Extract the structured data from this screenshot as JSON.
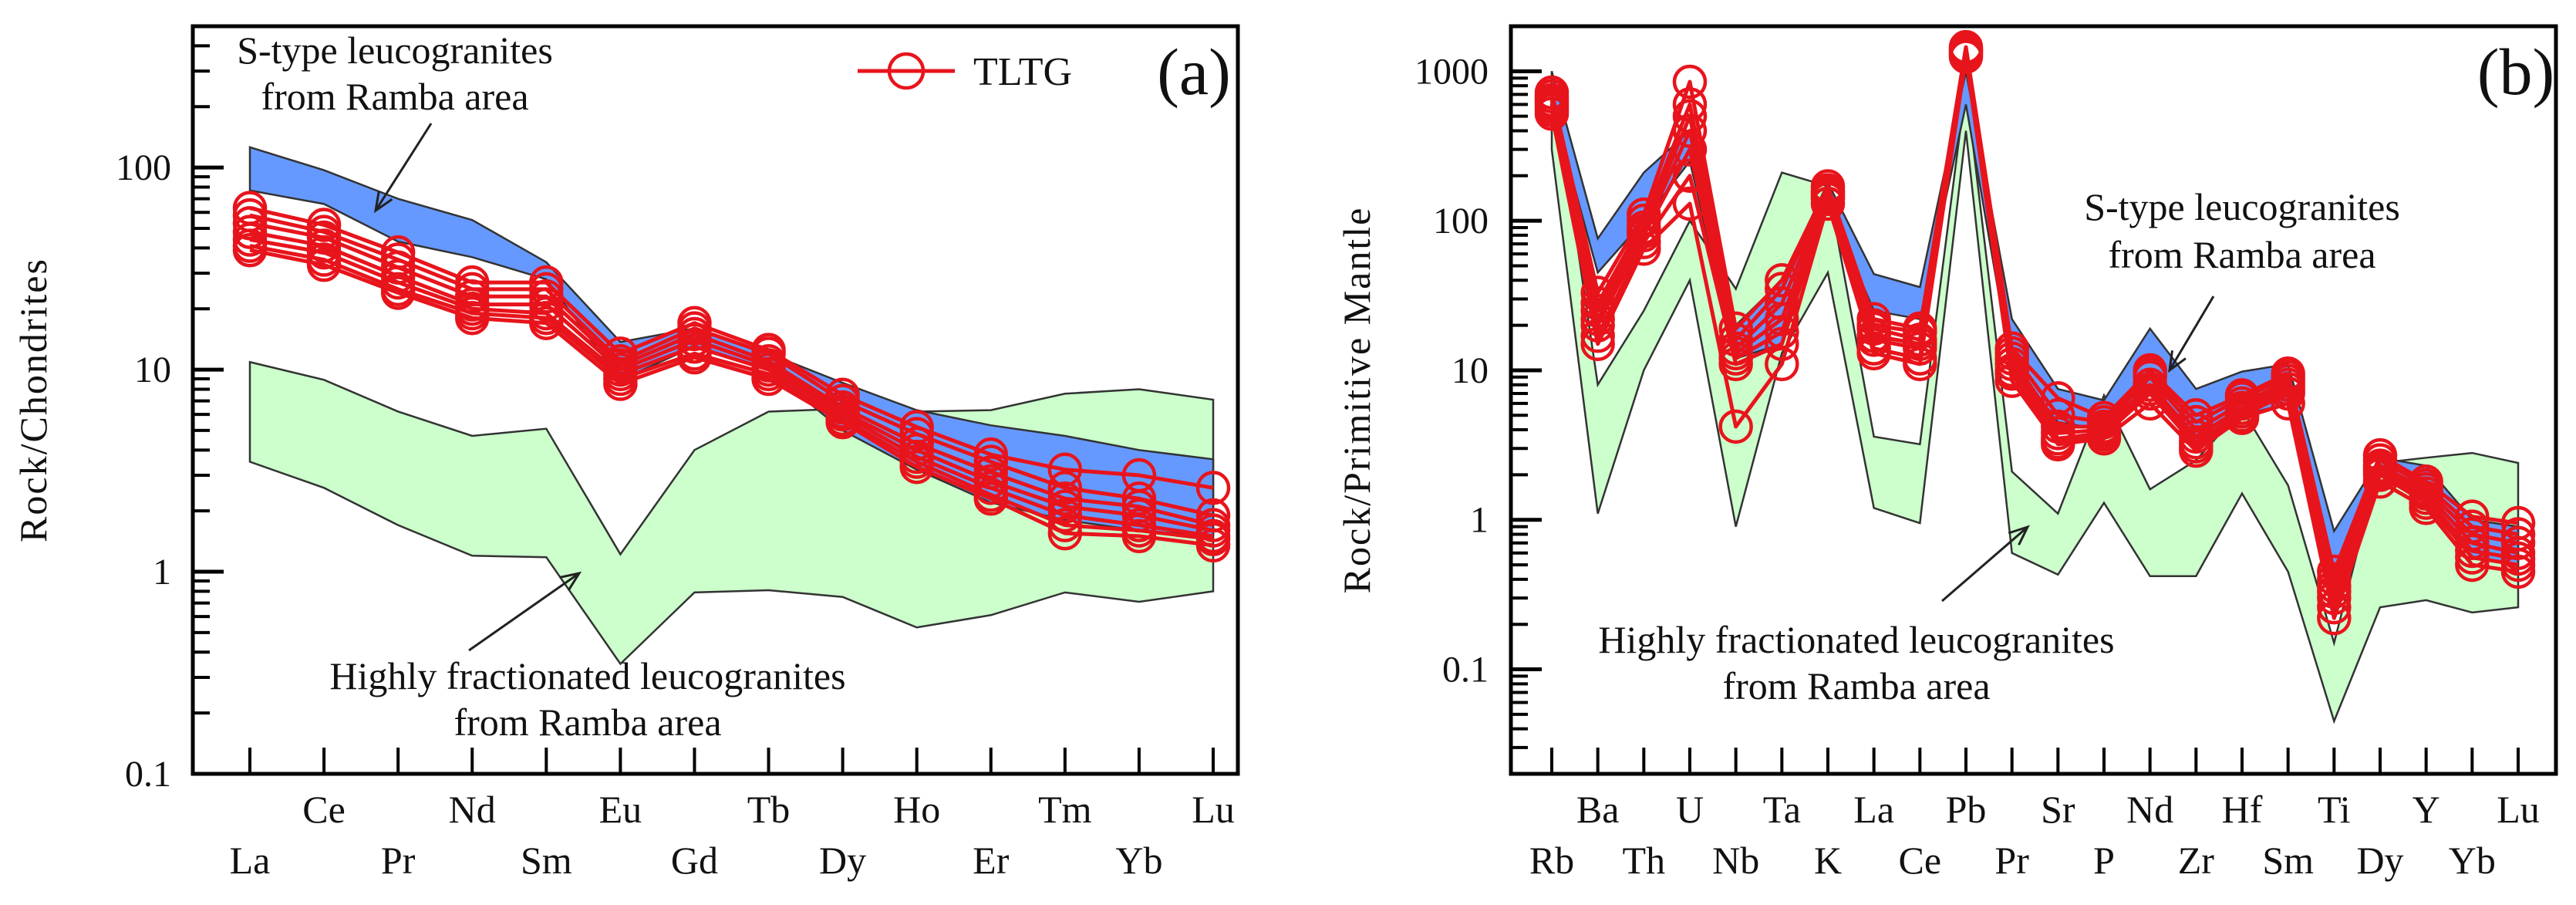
{
  "chart_data": [
    {
      "type": "line",
      "panel_label": "(a)",
      "ylabel": "Rock/Chondrites",
      "yscale": "log",
      "ylim": [
        0.1,
        500
      ],
      "yticks": [
        "100",
        "10",
        "1",
        "0.1"
      ],
      "ytick_values": [
        100,
        10,
        1,
        0.1
      ],
      "categories": [
        "La",
        "Ce",
        "Pr",
        "Nd",
        "Sm",
        "Eu",
        "Gd",
        "Tb",
        "Dy",
        "Ho",
        "Er",
        "Tm",
        "Yb",
        "Lu"
      ],
      "legend": {
        "label": "TLTG",
        "placement": "top-right"
      },
      "bands": [
        {
          "name": "S-type leucogranites from Ramba area",
          "color": "#6699ff",
          "upper": [
            126,
            97,
            70,
            55,
            34,
            13.7,
            16,
            12,
            8.6,
            6.3,
            5.3,
            4.7,
            4.0,
            3.6
          ],
          "lower": [
            77,
            66,
            43,
            36,
            28,
            8.9,
            13,
            10,
            5,
            3.2,
            2.2,
            1.8,
            1.6,
            1.5
          ]
        },
        {
          "name": "Highly fractionated leucogranites from Ramba area",
          "color": "#ccffcc",
          "upper": [
            10.9,
            8.9,
            6.2,
            4.7,
            5.1,
            1.22,
            4.0,
            6.2,
            6.4,
            6.2,
            6.3,
            7.6,
            8.0,
            7.1
          ],
          "lower": [
            3.5,
            2.6,
            1.7,
            1.2,
            1.18,
            0.35,
            0.79,
            0.81,
            0.75,
            0.53,
            0.61,
            0.79,
            0.71,
            0.8
          ]
        }
      ],
      "annotations": [
        {
          "lines": [
            "S-type leucogranites",
            "from Ramba area"
          ]
        },
        {
          "lines": [
            "Highly fractionated leucogranites",
            "from Ramba area"
          ]
        }
      ],
      "series_color": "#e8141c",
      "series": [
        {
          "name": "TLTG",
          "values": [
            63,
            52,
            38,
            27,
            27,
            12,
            17,
            12.5,
            7.5,
            5.2,
            3.8,
            3.2,
            3.0,
            2.6
          ]
        },
        {
          "name": "TLTG",
          "values": [
            58,
            48,
            35,
            25,
            25,
            11,
            16,
            12,
            7,
            4.8,
            3.5,
            2.6,
            2.3,
            1.9
          ]
        },
        {
          "name": "TLTG",
          "values": [
            53,
            45,
            32,
            23,
            23,
            10.5,
            15,
            11,
            6.5,
            4.3,
            3.1,
            2.3,
            2.1,
            1.7
          ]
        },
        {
          "name": "TLTG",
          "values": [
            48,
            41,
            29,
            21,
            21,
            10,
            14,
            10.5,
            6.2,
            4,
            2.8,
            2.1,
            1.9,
            1.6
          ]
        },
        {
          "name": "TLTG",
          "values": [
            44,
            38,
            27,
            20,
            19,
            9.5,
            13,
            10,
            6,
            3.7,
            2.6,
            1.9,
            1.7,
            1.5
          ]
        },
        {
          "name": "TLTG",
          "values": [
            41,
            35,
            25,
            19,
            18,
            9,
            12,
            9.5,
            5.7,
            3.5,
            2.4,
            1.7,
            1.6,
            1.45
          ]
        },
        {
          "name": "TLTG",
          "values": [
            39,
            33,
            24,
            18,
            17,
            8.5,
            11.5,
            9,
            5.5,
            3.3,
            2.3,
            1.55,
            1.5,
            1.35
          ]
        }
      ]
    },
    {
      "type": "line",
      "panel_label": "(b)",
      "ylabel": "Rock/Primitive Mantle",
      "yscale": "log",
      "ylim": [
        0.02,
        2000
      ],
      "yticks": [
        "1000",
        "100",
        "10",
        "1",
        "0.1"
      ],
      "ytick_values": [
        1000,
        100,
        10,
        1,
        0.1
      ],
      "categories": [
        "Rb",
        "Ba",
        "Th",
        "U",
        "Nb",
        "Ta",
        "K",
        "La",
        "Ce",
        "Pb",
        "Pr",
        "Sr",
        "P",
        "Nd",
        "Zr",
        "Hf",
        "Sm",
        "Ti",
        "Dy",
        "Y",
        "Yb",
        "Lu"
      ],
      "bands": [
        {
          "name": "S-type leucogranites from Ramba area",
          "color": "#6699ff",
          "upper": [
            1000,
            76,
            210,
            400,
            20,
            40,
            180,
            44,
            36,
            1000,
            22,
            7.5,
            6.3,
            19,
            7.5,
            9.8,
            11,
            0.84,
            2.6,
            2.3,
            1.0,
            0.9
          ],
          "lower": [
            600,
            45,
            100,
            250,
            12,
            15,
            130,
            25,
            22,
            600,
            10,
            4.5,
            4,
            8,
            3,
            5,
            6,
            0.25,
            2,
            1.3,
            0.55,
            0.5
          ]
        },
        {
          "name": "Highly fractionated leucogranites from Ramba area",
          "color": "#ccffcc",
          "upper": [
            1000,
            8,
            25,
            100,
            35,
            210,
            170,
            3.6,
            3.2,
            800,
            2.1,
            1.1,
            6.8,
            1.6,
            2.5,
            5.5,
            1.7,
            0.15,
            2.4,
            2.6,
            2.8,
            2.4
          ],
          "lower": [
            300,
            1.1,
            10,
            40,
            0.9,
            13,
            45,
            1.2,
            0.95,
            400,
            0.6,
            0.43,
            1.3,
            0.42,
            0.42,
            1.5,
            0.45,
            0.045,
            0.26,
            0.29,
            0.24,
            0.26
          ]
        }
      ],
      "annotations": [
        {
          "lines": [
            "S-type leucogranites",
            "from Ramba area"
          ]
        },
        {
          "lines": [
            "Highly fractionated leucogranites",
            "from Ramba area"
          ]
        }
      ],
      "series_color": "#e8141c",
      "series": [
        {
          "name": "TLTG",
          "values": [
            720,
            33,
            110,
            850,
            19,
            40,
            170,
            22,
            19,
            1450,
            14,
            6.5,
            4.8,
            10,
            5,
            6.8,
            9.5,
            0.45,
            2.7,
            1.8,
            1.05,
            0.95
          ]
        },
        {
          "name": "TLTG",
          "values": [
            680,
            28,
            100,
            600,
            16,
            35,
            160,
            20,
            18,
            1400,
            13,
            5,
            4.5,
            9.5,
            4.5,
            6.5,
            9,
            0.4,
            2.5,
            1.7,
            0.9,
            0.8
          ]
        },
        {
          "name": "TLTG",
          "values": [
            640,
            25,
            90,
            500,
            14,
            28,
            155,
            19,
            16,
            1380,
            12,
            4.2,
            4.2,
            9,
            4,
            6,
            8.5,
            0.36,
            2.3,
            1.6,
            0.8,
            0.7
          ]
        },
        {
          "name": "TLTG",
          "values": [
            610,
            22,
            85,
            400,
            13,
            22,
            150,
            17,
            15,
            1350,
            11,
            3.8,
            4,
            8,
            3.6,
            5.6,
            8,
            0.33,
            2.2,
            1.5,
            0.7,
            0.6
          ]
        },
        {
          "name": "TLTG",
          "values": [
            580,
            20,
            80,
            300,
            12,
            18,
            145,
            16,
            14,
            1320,
            10,
            3.5,
            3.8,
            7.5,
            3.3,
            5.3,
            7.5,
            0.3,
            2.1,
            1.4,
            0.62,
            0.55
          ]
        },
        {
          "name": "TLTG",
          "values": [
            550,
            17,
            72,
            200,
            11,
            15,
            140,
            14,
            12,
            1280,
            9.5,
            3.3,
            3.7,
            7,
            3.1,
            5,
            7,
            0.26,
            2,
            1.3,
            0.56,
            0.5
          ]
        },
        {
          "name": "TLTG",
          "values": [
            520,
            15,
            65,
            130,
            4.2,
            11,
            130,
            13,
            11,
            1250,
            8.5,
            3.2,
            3.5,
            6,
            2.9,
            4.8,
            6,
            0.22,
            1.8,
            1.2,
            0.5,
            0.45
          ]
        }
      ]
    }
  ]
}
